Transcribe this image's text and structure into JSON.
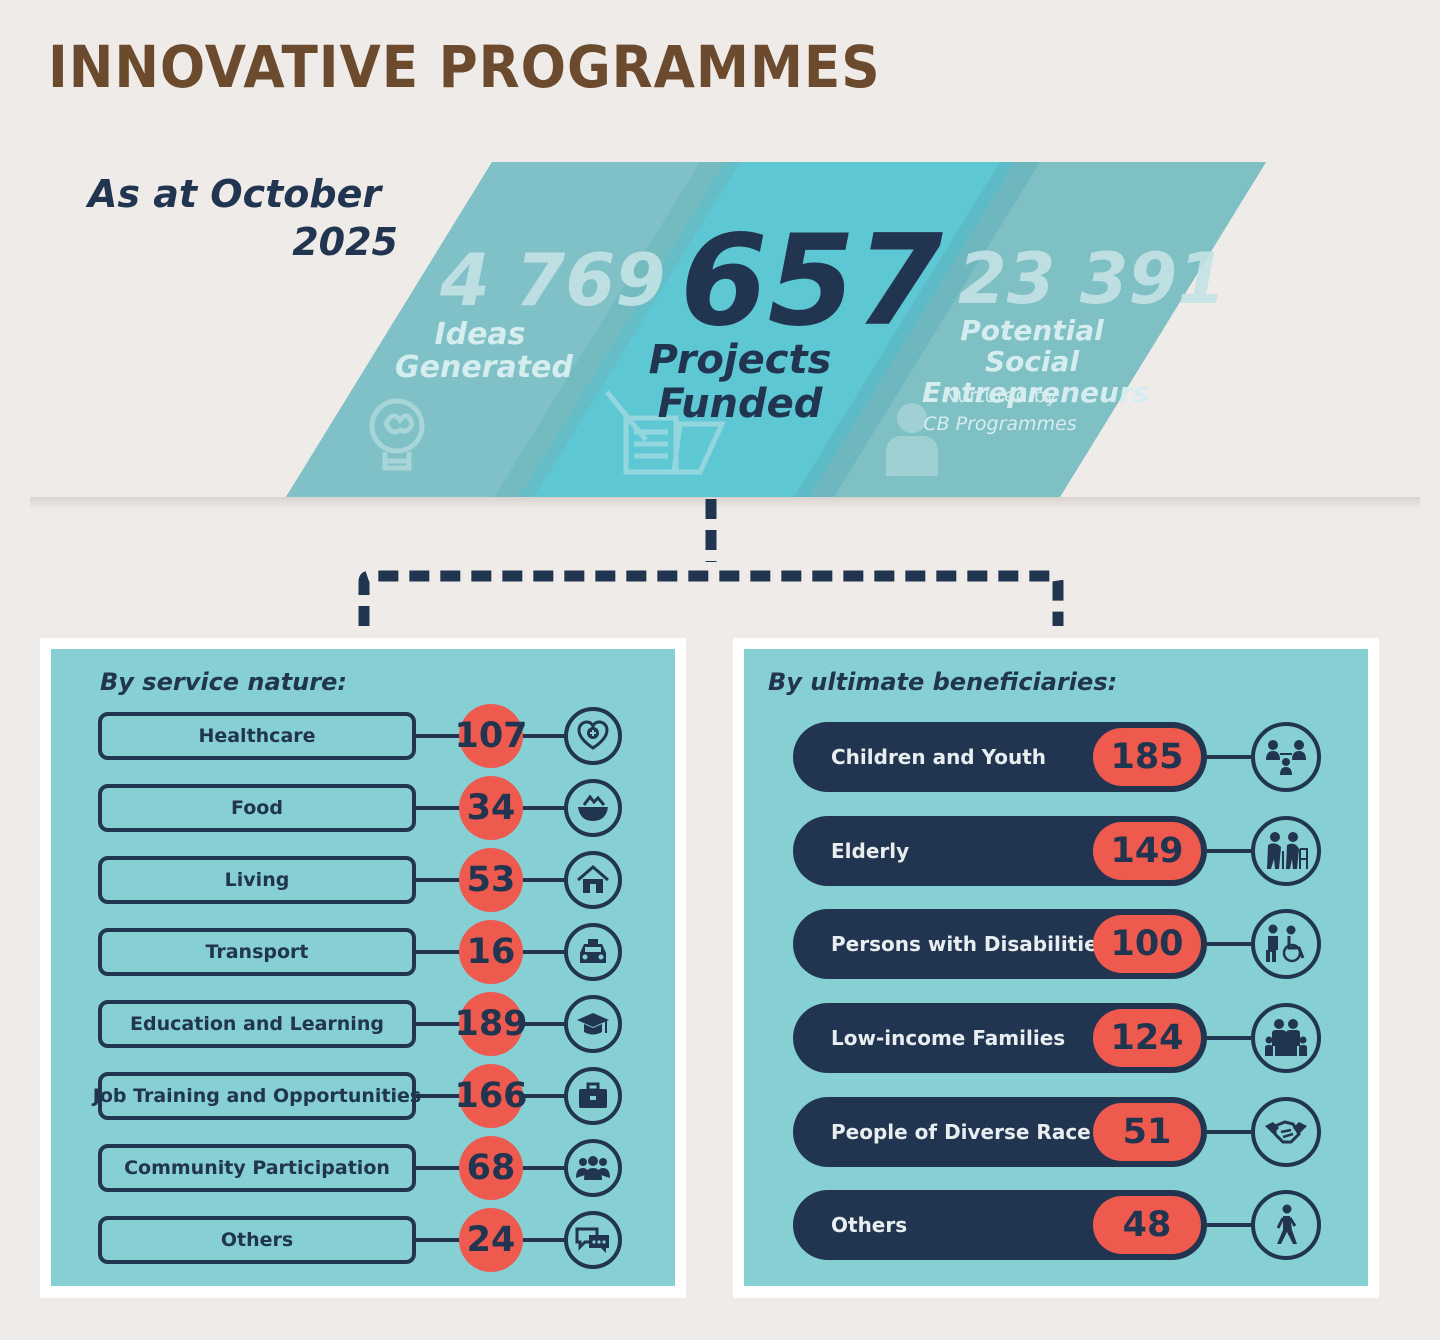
{
  "title": "INNOVATIVE PROGRAMMES",
  "as_at": {
    "line1": "As at October",
    "line2": "2025"
  },
  "stats": {
    "ideas": {
      "value": "4 769",
      "label1": "Ideas",
      "label2": "Generated",
      "icon": "lightbulb-brain-icon"
    },
    "projects": {
      "value": "657",
      "label1": "Projects",
      "label2": "Funded",
      "icon": "document-pen-icon"
    },
    "entrepreneurs": {
      "value": "23 391",
      "label1": "Potential Social",
      "label2": "Entrepreneurs",
      "sub1": "Nurtured by",
      "sub2": "CB Programmes",
      "icon": "person-icon"
    }
  },
  "service": {
    "title": "By service nature:",
    "items": [
      {
        "label": "Healthcare",
        "value": "107",
        "icon": "heart-plus-icon"
      },
      {
        "label": "Food",
        "value": "34",
        "icon": "food-bowl-icon"
      },
      {
        "label": "Living",
        "value": "53",
        "icon": "house-icon"
      },
      {
        "label": "Transport",
        "value": "16",
        "icon": "car-icon"
      },
      {
        "label": "Education and Learning",
        "value": "189",
        "icon": "graduation-cap-icon"
      },
      {
        "label": "Job Training and Opportunities",
        "value": "166",
        "icon": "briefcase-icon"
      },
      {
        "label": "Community Participation",
        "value": "68",
        "icon": "people-group-icon"
      },
      {
        "label": "Others",
        "value": "24",
        "icon": "chat-bubbles-icon"
      }
    ]
  },
  "beneficiaries": {
    "title": "By ultimate beneficiaries:",
    "items": [
      {
        "label": "Children and Youth",
        "value": "185",
        "icon": "children-icon"
      },
      {
        "label": "Elderly",
        "value": "149",
        "icon": "elderly-icon"
      },
      {
        "label": "Persons with Disabilities",
        "value": "100",
        "icon": "wheelchair-icon"
      },
      {
        "label": "Low-income Families",
        "value": "124",
        "icon": "family-icon"
      },
      {
        "label": "People of Diverse Race",
        "value": "51",
        "icon": "handshake-icon"
      },
      {
        "label": "Others",
        "value": "48",
        "icon": "walking-person-icon"
      }
    ]
  },
  "colors": {
    "navy": "#213550",
    "teal": "#86cfd2",
    "coral": "#ee5a4d",
    "brown": "#6b4a2e",
    "bg": "#efebe8"
  }
}
